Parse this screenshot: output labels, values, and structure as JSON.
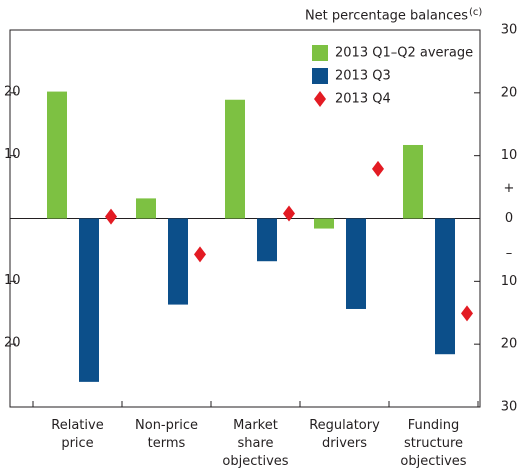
{
  "chart_data": {
    "type": "bar",
    "axis_label": "Net percentage balances",
    "axis_label_note": "(c)",
    "sign_labels": [
      "+",
      "–"
    ],
    "categories": [
      "Relative price",
      "Non-price terms",
      "Market share objectives",
      "Regulatory drivers",
      "Funding structure objectives"
    ],
    "series": [
      {
        "name": "2013 Q1–Q2 average",
        "color": "#7dc142",
        "kind": "bar",
        "values": [
          20.2,
          3.2,
          18.9,
          -1.6,
          11.7
        ]
      },
      {
        "name": "2013 Q3",
        "color": "#0c4f8a",
        "kind": "bar",
        "values": [
          -26,
          -13.7,
          -6.8,
          -14.4,
          -21.6
        ]
      },
      {
        "name": "2013 Q4",
        "color": "#e31b23",
        "kind": "diamond",
        "values": [
          0.3,
          -5.7,
          0.8,
          7.9,
          -15.1
        ]
      }
    ],
    "ylim": [
      -30,
      30
    ],
    "yticks": [
      {
        "value": -30,
        "label": "30"
      },
      {
        "value": -20,
        "label": "20"
      },
      {
        "value": -10,
        "label": "10"
      },
      0,
      10,
      20,
      30
    ],
    "legend": "upper right"
  }
}
